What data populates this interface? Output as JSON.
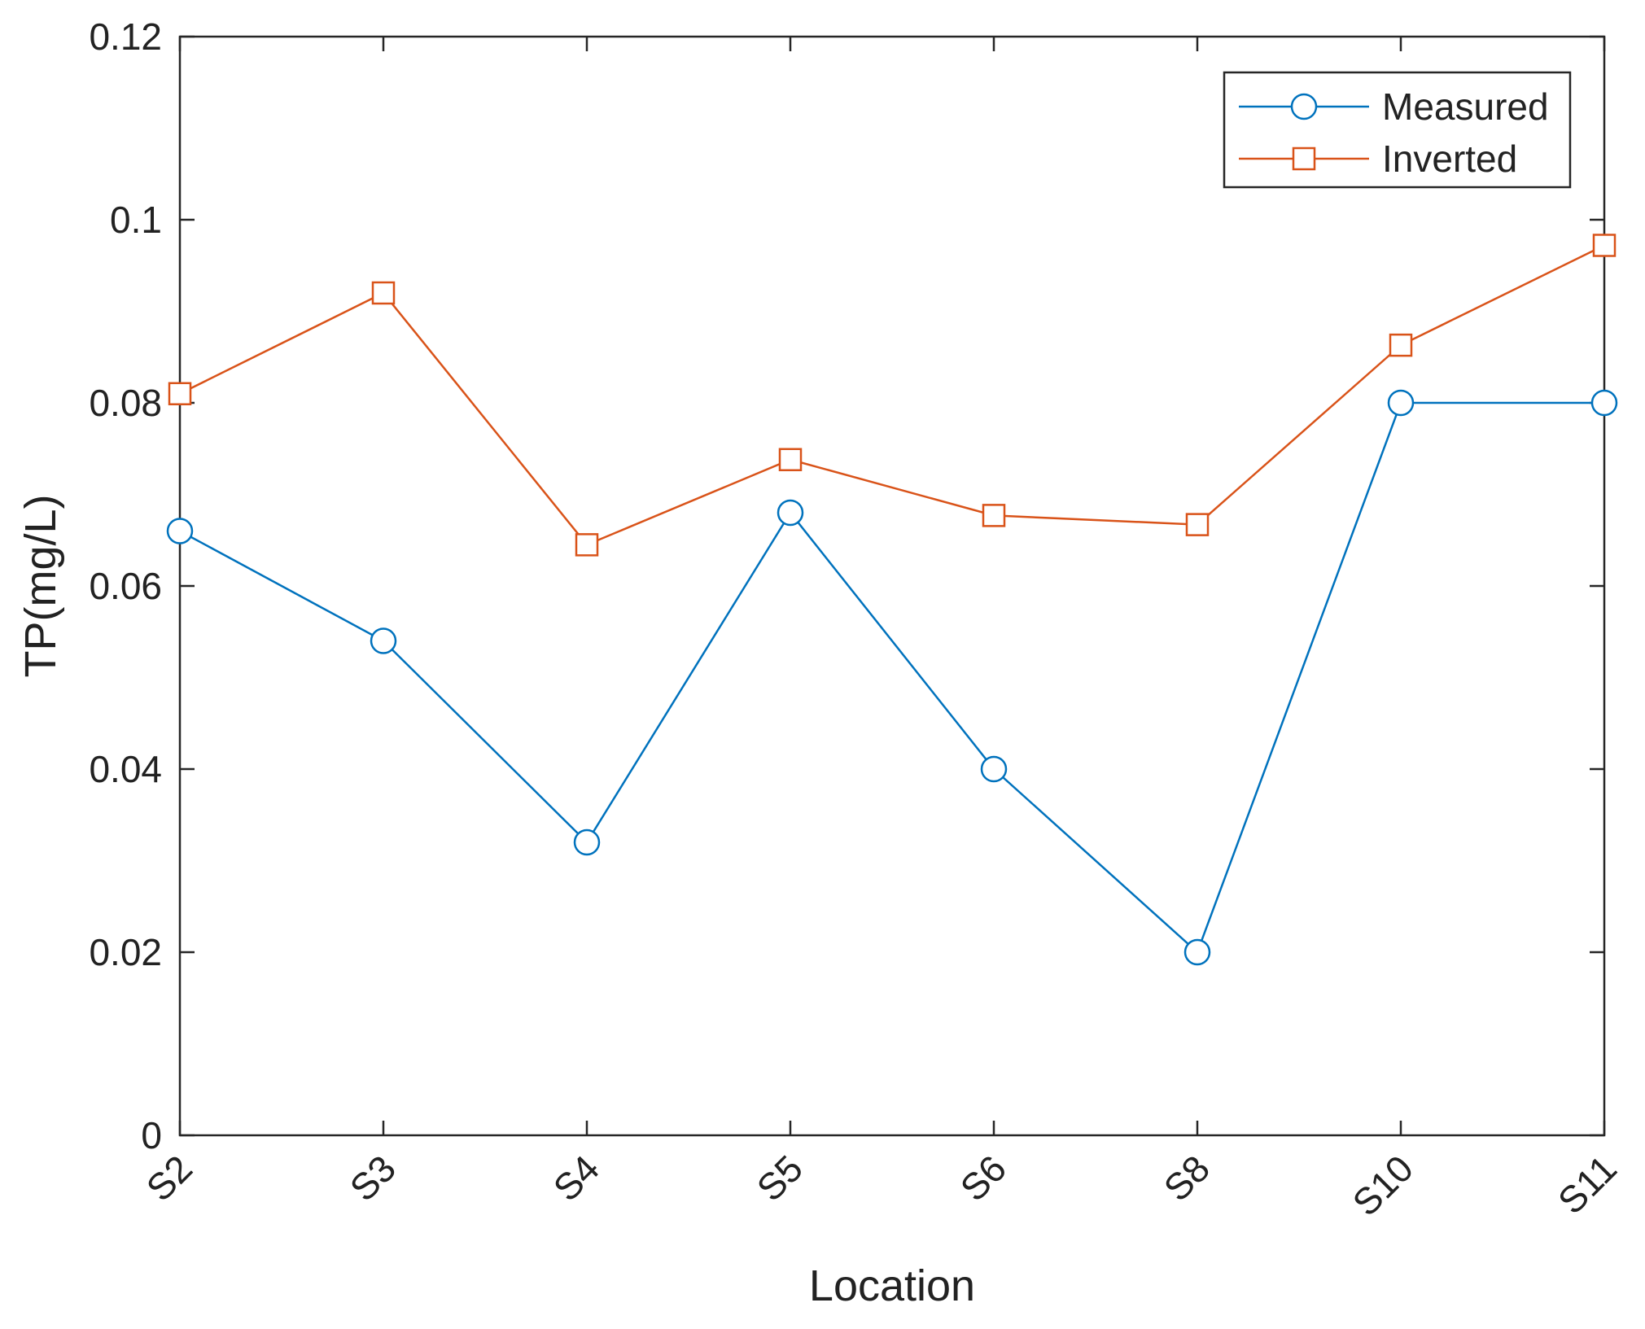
{
  "chart_data": {
    "type": "line",
    "xlabel": "Location",
    "ylabel": "TP(mg/L)",
    "categories": [
      "S2",
      "S3",
      "S4",
      "S5",
      "S6",
      "S8",
      "S10",
      "S11"
    ],
    "ylim": [
      0,
      0.12
    ],
    "yticks": [
      0,
      0.02,
      0.04,
      0.06,
      0.08,
      0.1,
      0.12
    ],
    "ytick_labels": [
      "0",
      "0.02",
      "0.04",
      "0.06",
      "0.08",
      "0.1",
      "0.12"
    ],
    "grid": false,
    "legend_position": "top-right",
    "series": [
      {
        "name": "Measured",
        "marker": "circle",
        "color": "#0072BD",
        "values": [
          0.066,
          0.054,
          0.032,
          0.068,
          0.04,
          0.02,
          0.08,
          0.08
        ]
      },
      {
        "name": "Inverted",
        "marker": "square",
        "color": "#D95319",
        "values": [
          0.081,
          0.092,
          0.0645,
          0.0738,
          0.0677,
          0.0667,
          0.0863,
          0.0972
        ]
      }
    ]
  }
}
